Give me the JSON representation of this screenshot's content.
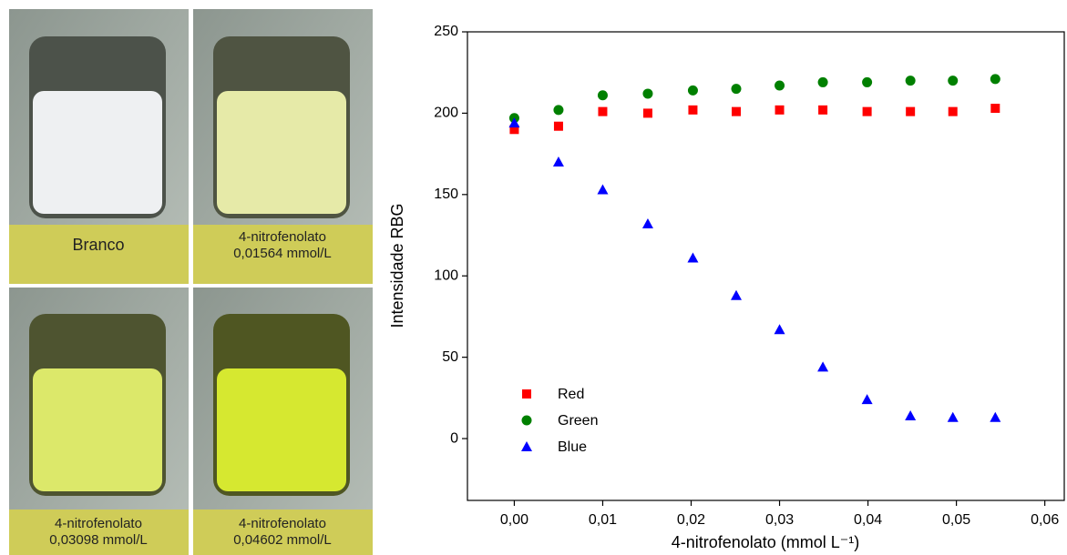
{
  "photos": [
    {
      "lines": [
        "Branco"
      ]
    },
    {
      "lines": [
        "4-nitrofenolato",
        "0,01564 mmol/L"
      ]
    },
    {
      "lines": [
        "4-nitrofenolato",
        "0,03098 mmol/L"
      ]
    },
    {
      "lines": [
        "4-nitrofenolato",
        "0,04602 mmol/L"
      ]
    }
  ],
  "chart_data": {
    "type": "scatter",
    "x_label": "4-nitrofenolato (mmol L⁻¹)",
    "y_label": "Intensidade RBG",
    "x": [
      0,
      0.005,
      0.01,
      0.0151,
      0.0202,
      0.0251,
      0.03,
      0.0349,
      0.0399,
      0.0448,
      0.0496,
      0.0544
    ],
    "series": [
      {
        "name": "Red",
        "color": "#ff0000",
        "marker": "square",
        "values": [
          190,
          192,
          201,
          200,
          202,
          201,
          202,
          202,
          201,
          201,
          201,
          203
        ]
      },
      {
        "name": "Green",
        "color": "#008000",
        "marker": "circle",
        "values": [
          197,
          202,
          211,
          212,
          214,
          215,
          217,
          219,
          219,
          220,
          220,
          221
        ]
      },
      {
        "name": "Blue",
        "color": "#0000ff",
        "marker": "triangle",
        "values": [
          194,
          170,
          153,
          132,
          111,
          88,
          67,
          44,
          24,
          14,
          13,
          13
        ]
      }
    ],
    "xlim": [
      -0.0053,
      0.0622
    ],
    "ylim": [
      -38,
      250
    ],
    "xticks": [
      {
        "value": 0,
        "label": "0,00"
      },
      {
        "value": 0.01,
        "label": "0,01"
      },
      {
        "value": 0.02,
        "label": "0,02"
      },
      {
        "value": 0.03,
        "label": "0,03"
      },
      {
        "value": 0.04,
        "label": "0,04"
      },
      {
        "value": 0.05,
        "label": "0,05"
      },
      {
        "value": 0.06,
        "label": "0,06"
      }
    ],
    "yticks": [
      0,
      50,
      100,
      150,
      200,
      250
    ],
    "grid": false,
    "legend": "lower left"
  }
}
